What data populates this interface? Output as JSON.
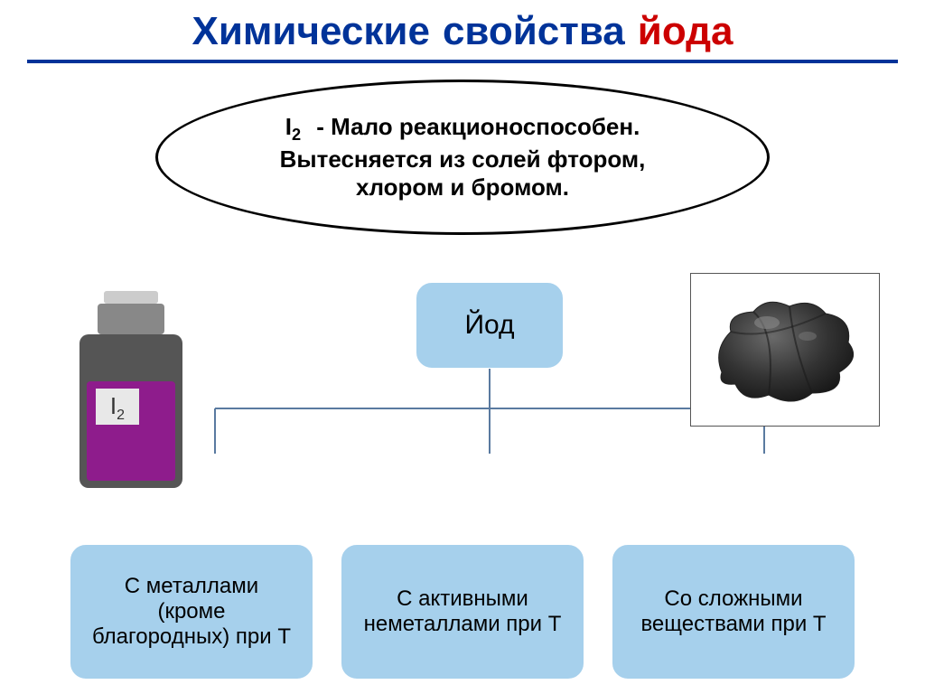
{
  "title": {
    "word1": "Химические",
    "word2": "свойства",
    "word3": "йода",
    "fontsize": 44
  },
  "rule_color": "#003399",
  "ellipse": {
    "i2_prefix": "I",
    "i2_sub": "2",
    "line1_rest": "- Мало реакционоспособен.",
    "line2": "Вытесняется из солей фтором,",
    "line3": "хлором и бромом.",
    "fontsize": 26,
    "border_color": "#000000"
  },
  "bottle": {
    "label_prefix": "I",
    "label_sub": "2",
    "cap_color": "#888888",
    "cap_top_color": "#cccccc",
    "body_color": "#555555",
    "liquid_color": "#8e1c8c",
    "label_bg": "#e8e8e8"
  },
  "crystal": {
    "fill": "#3a3a3a"
  },
  "root": {
    "label": "Йод",
    "fontsize": 30,
    "bg": "#a6d0ec"
  },
  "leaves": {
    "bg": "#a6d0ec",
    "fontsize": 24,
    "items": [
      "С металлами (кроме благородных) при Т",
      "С активными неметаллами при Т",
      "Со сложными веществами при Т"
    ]
  },
  "connector_color": "#5a7aa0"
}
